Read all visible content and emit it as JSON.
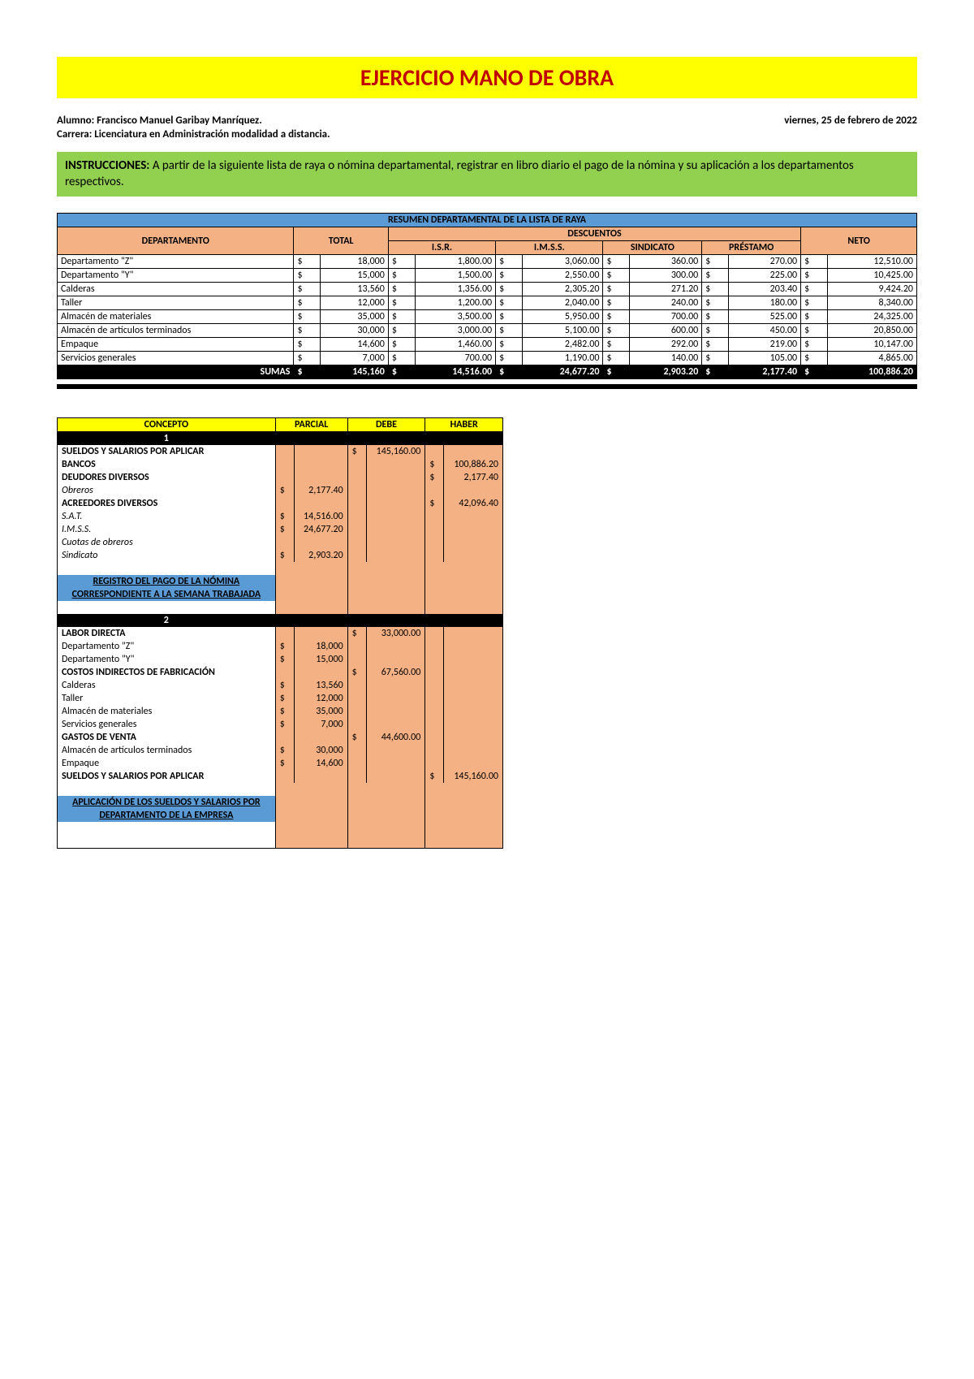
{
  "title": "EJERCICIO MANO DE OBRA",
  "alumno_label": "Alumno: Francisco Manuel Garibay Manríquez.",
  "carrera_label": "Carrera: Licenciatura en Administración modalidad a distancia.",
  "fecha": "viernes, 25 de febrero de 2022",
  "instrucciones_label": "INSTRUCCIONES:",
  "instrucciones_text": " A partir de la siguiente lista de raya o nómina departamental, registrar en libro diario el pago de la nómina y su aplicación a los departamentos respectivos.",
  "t1": {
    "title": "RESUMEN DEPARTAMENTAL DE LA LISTA DE RAYA",
    "col_departamento": "DEPARTAMENTO",
    "col_total": "TOTAL",
    "col_descuentos": "DESCUENTOS",
    "col_isr": "I.S.R.",
    "col_imss": "I.M.S.S.",
    "col_sindicato": "SINDICATO",
    "col_prestamo": "PRÉSTAMO",
    "col_neto": "NETO",
    "rows": [
      {
        "d": "Departamento \"Z\"",
        "total": "18,000",
        "isr": "1,800.00",
        "imss": "3,060.00",
        "sin": "360.00",
        "pre": "270.00",
        "neto": "12,510.00"
      },
      {
        "d": "Departamento \"Y\"",
        "total": "15,000",
        "isr": "1,500.00",
        "imss": "2,550.00",
        "sin": "300.00",
        "pre": "225.00",
        "neto": "10,425.00"
      },
      {
        "d": "Calderas",
        "total": "13,560",
        "isr": "1,356.00",
        "imss": "2,305.20",
        "sin": "271.20",
        "pre": "203.40",
        "neto": "9,424.20"
      },
      {
        "d": "Taller",
        "total": "12,000",
        "isr": "1,200.00",
        "imss": "2,040.00",
        "sin": "240.00",
        "pre": "180.00",
        "neto": "8,340.00"
      },
      {
        "d": "Almacén de materiales",
        "total": "35,000",
        "isr": "3,500.00",
        "imss": "5,950.00",
        "sin": "700.00",
        "pre": "525.00",
        "neto": "24,325.00"
      },
      {
        "d": "Almacén de artículos terminados",
        "total": "30,000",
        "isr": "3,000.00",
        "imss": "5,100.00",
        "sin": "600.00",
        "pre": "450.00",
        "neto": "20,850.00"
      },
      {
        "d": "Empaque",
        "total": "14,600",
        "isr": "1,460.00",
        "imss": "2,482.00",
        "sin": "292.00",
        "pre": "219.00",
        "neto": "10,147.00"
      },
      {
        "d": "Servicios generales",
        "total": "7,000",
        "isr": "700.00",
        "imss": "1,190.00",
        "sin": "140.00",
        "pre": "105.00",
        "neto": "4,865.00"
      }
    ],
    "sumas_label": "SUMAS",
    "sumas": {
      "total": "145,160",
      "isr": "14,516.00",
      "imss": "24,677.20",
      "sin": "2,903.20",
      "pre": "2,177.40",
      "neto": "100,886.20"
    }
  },
  "t2": {
    "col_concepto": "CONCEPTO",
    "col_parcial": "PARCIAL",
    "col_debe": "DEBE",
    "col_haber": "HABER",
    "e1": {
      "num": "1",
      "r": [
        {
          "c": "SUELDOS Y SALARIOS POR APLICAR",
          "ind": 0,
          "bold": true,
          "debe": "145,160.00"
        },
        {
          "c": "BANCOS",
          "ind": 1,
          "bold": true,
          "haber": "100,886.20"
        },
        {
          "c": "DEUDORES DIVERSOS",
          "ind": 1,
          "bold": true,
          "haber": "2,177.40"
        },
        {
          "c": "Obreros",
          "ind": 2,
          "italic": true,
          "parcial": "2,177.40"
        },
        {
          "c": "ACREEDORES DIVERSOS",
          "ind": 1,
          "bold": true,
          "haber": "42,096.40"
        },
        {
          "c": "S.A.T.",
          "ind": 2,
          "italic": true,
          "parcial": "14,516.00"
        },
        {
          "c": "I.M.S.S.",
          "ind": 2,
          "italic": true,
          "parcial": "24,677.20"
        },
        {
          "c": "Cuotas de obreros",
          "ind": 3,
          "italic": true
        },
        {
          "c": "Sindicato",
          "ind": 2,
          "italic": true,
          "parcial": "2,903.20"
        }
      ],
      "note1": "REGISTRO DEL PAGO DE LA NÓMINA",
      "note2": "CORRESPONDIENTE A LA SEMANA TRABAJADA"
    },
    "e2": {
      "num": "2",
      "r": [
        {
          "c": "LABOR DIRECTA",
          "ind": 0,
          "bold": true,
          "debe": "33,000.00"
        },
        {
          "c": "Departamento \"Z\"",
          "ind": 1,
          "parcial": "18,000"
        },
        {
          "c": "Departamento \"Y\"",
          "ind": 1,
          "parcial": "15,000"
        },
        {
          "c": "COSTOS INDIRECTOS DE FABRICACIÓN",
          "ind": 0,
          "bold": true,
          "debe": "67,560.00"
        },
        {
          "c": "Calderas",
          "ind": 1,
          "parcial": "13,560"
        },
        {
          "c": "Taller",
          "ind": 1,
          "parcial": "12,000"
        },
        {
          "c": "Almacén de materiales",
          "ind": 1,
          "parcial": "35,000"
        },
        {
          "c": "Servicios generales",
          "ind": 1,
          "parcial": "7,000"
        },
        {
          "c": "GASTOS DE VENTA",
          "ind": 0,
          "bold": true,
          "debe": "44,600.00"
        },
        {
          "c": "Almacén de artículos terminados",
          "ind": 1,
          "parcial": "30,000"
        },
        {
          "c": "Empaque",
          "ind": 1,
          "parcial": "14,600"
        },
        {
          "c": "SUELDOS Y SALARIOS POR APLICAR",
          "ind": 1,
          "bold": true,
          "haber": "145,160.00"
        }
      ],
      "note1": "APLICACIÓN DE LOS SUELDOS Y SALARIOS POR",
      "note2": "DEPARTAMENTO DE LA EMPRESA"
    }
  },
  "colors": {
    "yellow": "#ffff00",
    "red": "#c00000",
    "green": "#92d050",
    "blue": "#5b9bd5",
    "peach": "#f4b183",
    "black": "#000000",
    "white": "#ffffff"
  }
}
